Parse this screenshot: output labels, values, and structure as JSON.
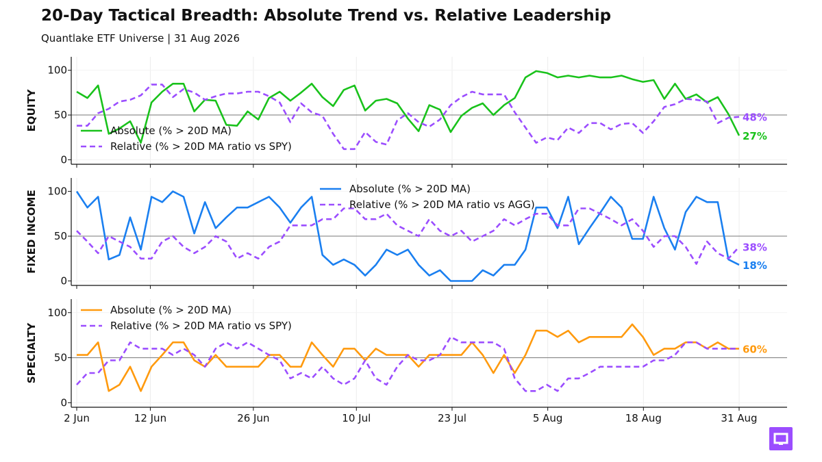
{
  "title": "20-Day Tactical Breadth: Absolute Trend vs. Relative Leadership",
  "subtitle": "Quantlake ETF Universe  |  31 Aug 2026",
  "brand_logo": "quantlake-logo-icon",
  "colors": {
    "equity": "#19c21b",
    "fixed_income": "#1a7ff0",
    "specialty": "#ff9a0e",
    "relative": "#9b4dff",
    "refline": "#777777",
    "grid": "#ececec"
  },
  "chart_data": [
    {
      "type": "line",
      "panel_label": "EQUITY",
      "ylim": [
        -5,
        115
      ],
      "yticks": [
        0,
        50,
        100
      ],
      "reference_line": 50,
      "grid": true,
      "legend_position": "bottom-left",
      "x_start": "2026-06-02",
      "x_end": "2026-08-31",
      "xticks": [
        {
          "date": "2026-06-02",
          "label": "2 Jun"
        },
        {
          "date": "2026-06-12",
          "label": "12 Jun"
        },
        {
          "date": "2026-06-26",
          "label": "26 Jun"
        },
        {
          "date": "2026-07-10",
          "label": "10 Jul"
        },
        {
          "date": "2026-07-23",
          "label": "23 Jul"
        },
        {
          "date": "2026-08-05",
          "label": "5 Aug"
        },
        {
          "date": "2026-08-18",
          "label": "18 Aug"
        },
        {
          "date": "2026-08-31",
          "label": "31 Aug"
        }
      ],
      "series": [
        {
          "name": "Absolute (% > 20D MA)",
          "style": "solid",
          "end_label": "27%",
          "values": [
            76,
            69,
            83,
            29,
            35,
            43,
            19,
            64,
            76,
            85,
            85,
            54,
            67,
            66,
            39,
            38,
            54,
            45,
            69,
            76,
            66,
            75,
            85,
            70,
            60,
            78,
            83,
            55,
            66,
            68,
            63,
            46,
            32,
            61,
            56,
            31,
            49,
            58,
            63,
            50,
            61,
            69,
            92,
            99,
            97,
            92,
            94,
            92,
            94,
            92,
            92,
            94,
            90,
            87,
            89,
            68,
            85,
            68,
            73,
            64,
            70,
            51,
            27
          ]
        },
        {
          "name": "Relative (% > 20D MA ratio vs SPY)",
          "style": "dashed",
          "end_label": "48%",
          "values": [
            38,
            38,
            52,
            57,
            65,
            67,
            72,
            84,
            84,
            70,
            79,
            75,
            67,
            71,
            74,
            74,
            76,
            76,
            71,
            64,
            42,
            63,
            53,
            49,
            29,
            12,
            12,
            31,
            20,
            17,
            44,
            52,
            42,
            37,
            45,
            61,
            70,
            76,
            73,
            73,
            73,
            53,
            36,
            19,
            25,
            22,
            36,
            30,
            41,
            41,
            34,
            40,
            41,
            30,
            43,
            59,
            62,
            68,
            67,
            65,
            41,
            47,
            48
          ]
        }
      ]
    },
    {
      "type": "line",
      "panel_label": "FIXED INCOME",
      "ylim": [
        -5,
        115
      ],
      "yticks": [
        0,
        50,
        100
      ],
      "reference_line": 50,
      "grid": true,
      "legend_position": "top-center",
      "x_start": "2026-06-02",
      "x_end": "2026-08-31",
      "series": [
        {
          "name": "Absolute (% > 20D MA)",
          "style": "solid",
          "end_label": "18%",
          "values": [
            100,
            82,
            94,
            24,
            29,
            71,
            35,
            94,
            88,
            100,
            94,
            53,
            88,
            59,
            71,
            82,
            82,
            88,
            94,
            82,
            65,
            82,
            94,
            29,
            18,
            24,
            18,
            6,
            18,
            35,
            29,
            35,
            18,
            6,
            12,
            0,
            0,
            0,
            12,
            6,
            18,
            18,
            35,
            82,
            82,
            59,
            94,
            41,
            59,
            76,
            94,
            82,
            47,
            47,
            94,
            59,
            35,
            77,
            94,
            88,
            88,
            24,
            18
          ]
        },
        {
          "name": "Relative (% > 20D MA ratio vs AGG)",
          "style": "dashed",
          "end_label": "38%",
          "values": [
            56,
            44,
            31,
            50,
            44,
            38,
            25,
            25,
            44,
            50,
            38,
            31,
            38,
            50,
            44,
            25,
            31,
            25,
            38,
            44,
            62,
            62,
            62,
            69,
            69,
            81,
            81,
            69,
            69,
            75,
            62,
            56,
            50,
            69,
            56,
            50,
            56,
            44,
            50,
            56,
            69,
            62,
            69,
            75,
            75,
            62,
            62,
            81,
            81,
            75,
            69,
            62,
            69,
            56,
            38,
            50,
            50,
            38,
            19,
            44,
            31,
            25,
            38
          ]
        }
      ]
    },
    {
      "type": "line",
      "panel_label": "SPECIALTY",
      "ylim": [
        -5,
        115
      ],
      "yticks": [
        0,
        50,
        100
      ],
      "reference_line": 50,
      "grid": true,
      "legend_position": "top-left",
      "x_start": "2026-06-02",
      "x_end": "2026-08-31",
      "series": [
        {
          "name": "Absolute (% > 20D MA)",
          "style": "solid",
          "end_label": "60%",
          "values": [
            53,
            53,
            67,
            13,
            20,
            40,
            13,
            40,
            53,
            67,
            67,
            47,
            40,
            53,
            40,
            40,
            40,
            40,
            53,
            53,
            40,
            40,
            67,
            53,
            40,
            60,
            60,
            47,
            60,
            53,
            53,
            53,
            40,
            53,
            53,
            53,
            53,
            67,
            53,
            33,
            53,
            33,
            53,
            80,
            80,
            73,
            80,
            67,
            73,
            73,
            73,
            73,
            87,
            73,
            53,
            60,
            60,
            67,
            67,
            60,
            67,
            60,
            60
          ]
        },
        {
          "name": "Relative (% > 20D MA ratio vs SPY)",
          "style": "dashed",
          "end_label": "",
          "values": [
            20,
            33,
            33,
            47,
            47,
            67,
            60,
            60,
            60,
            53,
            60,
            53,
            40,
            60,
            67,
            60,
            67,
            60,
            53,
            47,
            27,
            33,
            27,
            40,
            27,
            20,
            27,
            47,
            27,
            20,
            40,
            53,
            47,
            47,
            53,
            73,
            67,
            67,
            67,
            67,
            60,
            27,
            13,
            13,
            20,
            13,
            27,
            27,
            33,
            40,
            40,
            40,
            40,
            40,
            47,
            47,
            53,
            67,
            67,
            60,
            60,
            60,
            60
          ]
        }
      ]
    }
  ]
}
